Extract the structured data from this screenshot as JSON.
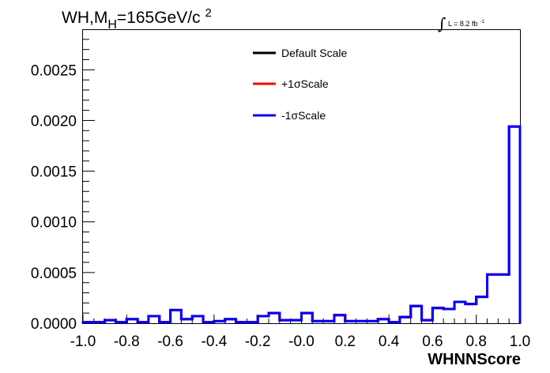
{
  "chart_data": {
    "type": "step",
    "title_parts": {
      "main": "WH,M",
      "sub": "H",
      "rest": "=165GeV/c",
      "sup": "2"
    },
    "lumi_parts": {
      "integral": "∫",
      "text": "L = 8.2 fb",
      "sup": "-1"
    },
    "xlabel": "WHNNScore",
    "ylabel": "",
    "xlim": [
      -1.0,
      1.0
    ],
    "ylim": [
      0.0,
      0.0029
    ],
    "x_ticks": [
      "-1.0",
      "-0.8",
      "-0.6",
      "-0.4",
      "-0.2",
      "-0.0",
      "0.2",
      "0.4",
      "0.6",
      "0.8",
      "1.0"
    ],
    "y_ticks": [
      "0.0000",
      "0.0005",
      "0.0010",
      "0.0015",
      "0.0020",
      "0.0025"
    ],
    "bin_edges": [
      -1.0,
      -0.95,
      -0.9,
      -0.85,
      -0.8,
      -0.75,
      -0.7,
      -0.65,
      -0.6,
      -0.55,
      -0.5,
      -0.45,
      -0.4,
      -0.35,
      -0.3,
      -0.25,
      -0.2,
      -0.15,
      -0.1,
      -0.05,
      0.0,
      0.05,
      0.1,
      0.15,
      0.2,
      0.25,
      0.3,
      0.35,
      0.4,
      0.45,
      0.5,
      0.55,
      0.6,
      0.65,
      0.7,
      0.75,
      0.8,
      0.85,
      0.9,
      0.95,
      1.0
    ],
    "series": [
      {
        "name": "Default Scale",
        "color": "#000000",
        "values": [
          1e-05,
          1e-05,
          3e-05,
          1e-05,
          4e-05,
          1e-05,
          7e-05,
          1e-05,
          0.00013,
          4e-05,
          7e-05,
          1e-05,
          2e-05,
          4e-05,
          1e-05,
          1e-05,
          7e-05,
          0.0001,
          3e-05,
          3e-05,
          0.0001,
          2e-05,
          2e-05,
          8e-05,
          2e-05,
          2e-05,
          2e-05,
          4e-05,
          1e-05,
          6e-05,
          0.00017,
          3e-05,
          0.00015,
          0.00014,
          0.00021,
          0.00019,
          0.00026,
          0.00048,
          0.00048,
          0.00194
        ]
      },
      {
        "name": "+1σScale",
        "color": "#ff0000",
        "values": [
          1e-05,
          1e-05,
          3e-05,
          1e-05,
          4e-05,
          1e-05,
          7e-05,
          1e-05,
          0.00013,
          4e-05,
          7e-05,
          1e-05,
          2e-05,
          4e-05,
          1e-05,
          1e-05,
          7e-05,
          0.0001,
          3e-05,
          3e-05,
          0.0001,
          2e-05,
          2e-05,
          8e-05,
          2e-05,
          2e-05,
          2e-05,
          4e-05,
          1e-05,
          6e-05,
          0.00017,
          3e-05,
          0.00015,
          0.00014,
          0.00021,
          0.00019,
          0.00026,
          0.00048,
          0.00048,
          0.00194
        ]
      },
      {
        "name": "-1σScale",
        "color": "#0000ff",
        "values": [
          1e-05,
          1e-05,
          3e-05,
          1e-05,
          4e-05,
          1e-05,
          7e-05,
          1e-05,
          0.00013,
          4e-05,
          7e-05,
          1e-05,
          2e-05,
          4e-05,
          1e-05,
          1e-05,
          7e-05,
          0.0001,
          3e-05,
          3e-05,
          0.0001,
          2e-05,
          2e-05,
          8e-05,
          2e-05,
          2e-05,
          2e-05,
          4e-05,
          1e-05,
          6e-05,
          0.00017,
          3e-05,
          0.00015,
          0.00014,
          0.00021,
          0.00019,
          0.00026,
          0.00048,
          0.00048,
          0.00194
        ]
      }
    ],
    "legend_position": "top-center",
    "grid": false
  }
}
